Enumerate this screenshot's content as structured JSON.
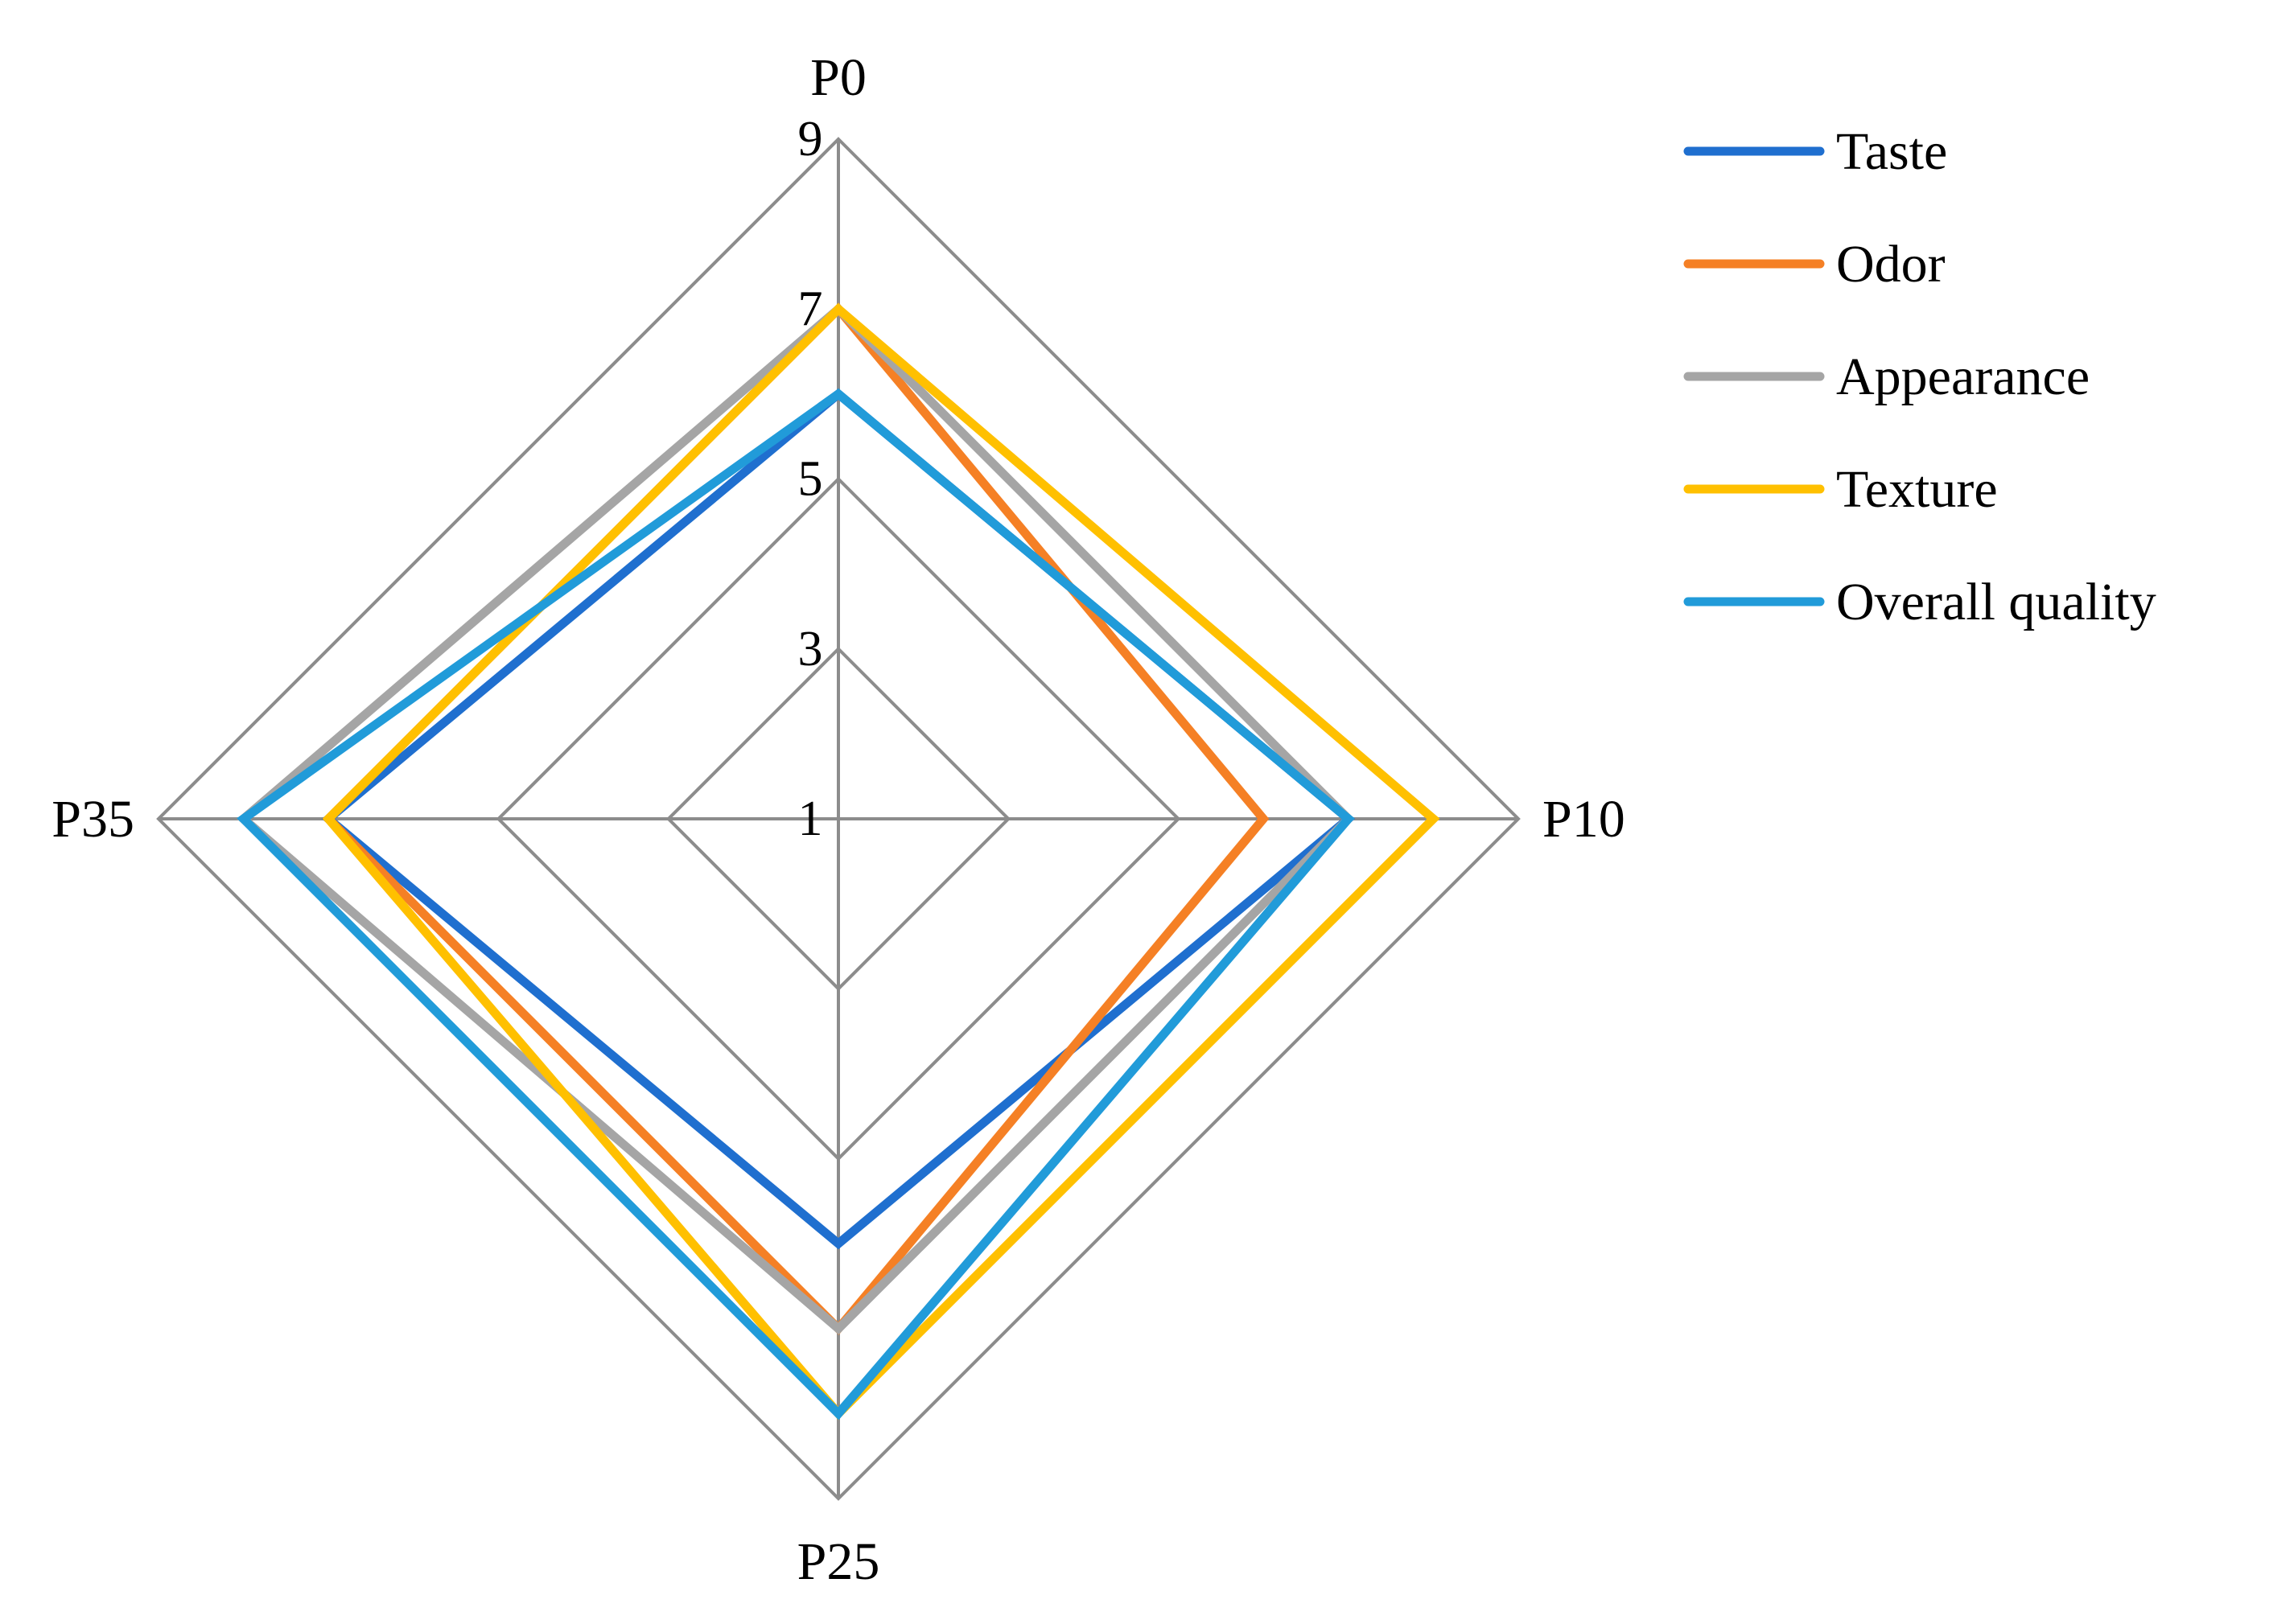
{
  "chart_data": {
    "type": "radar",
    "axes": [
      "P0",
      "P10",
      "P25",
      "P35"
    ],
    "ticks": [
      1,
      3,
      5,
      7,
      9
    ],
    "range": [
      1,
      9
    ],
    "grid": true,
    "legend_position": "top-right",
    "series": [
      {
        "name": "Taste",
        "values": [
          6,
          7,
          6,
          7
        ],
        "color": "#1f6fcf"
      },
      {
        "name": "Odor",
        "values": [
          7,
          6,
          7,
          7
        ],
        "color": "#f58025"
      },
      {
        "name": "Appearance",
        "values": [
          7,
          7,
          7,
          8
        ],
        "color": "#a5a5a5"
      },
      {
        "name": "Texture",
        "values": [
          7,
          8,
          8,
          7
        ],
        "color": "#ffc000"
      },
      {
        "name": "Overall quality",
        "values": [
          6,
          7,
          8,
          8
        ],
        "color": "#219bd9"
      }
    ],
    "grid_color": "#8c8c8c"
  }
}
